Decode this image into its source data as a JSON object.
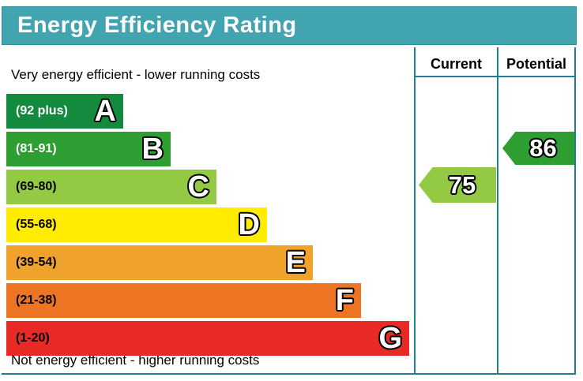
{
  "title": "Energy Efficiency Rating",
  "colors": {
    "header_bg": "#41a4b0",
    "table_line": "#20808f"
  },
  "columns": {
    "current_label": "Current",
    "potential_label": "Potential"
  },
  "notes": {
    "top": "Very energy efficient - lower running costs",
    "bottom": "Not energy efficient - higher running costs"
  },
  "bands": [
    {
      "letter": "A",
      "range": "(92 plus)",
      "color": "#148a3e",
      "range_text_color": "#ffffff"
    },
    {
      "letter": "B",
      "range": "(81-91)",
      "color": "#2e9d32",
      "range_text_color": "#ffffff"
    },
    {
      "letter": "C",
      "range": "(69-80)",
      "color": "#94ca43",
      "range_text_color": "#000000"
    },
    {
      "letter": "D",
      "range": "(55-68)",
      "color": "#ffec00",
      "range_text_color": "#000000"
    },
    {
      "letter": "E",
      "range": "(39-54)",
      "color": "#efa32c",
      "range_text_color": "#000000"
    },
    {
      "letter": "F",
      "range": "(21-38)",
      "color": "#ec7423",
      "range_text_color": "#000000"
    },
    {
      "letter": "G",
      "range": "(1-20)",
      "color": "#e72a25",
      "range_text_color": "#000000"
    }
  ],
  "current": {
    "value": "75",
    "band": "C",
    "color": "#94ca43"
  },
  "potential": {
    "value": "86",
    "band": "B",
    "color": "#2e9d32"
  },
  "chart_data": {
    "type": "bar",
    "title": "Energy Efficiency Rating",
    "categories": [
      "A",
      "B",
      "C",
      "D",
      "E",
      "F",
      "G"
    ],
    "band_score_ranges": [
      "92 plus",
      "81-91",
      "69-80",
      "55-68",
      "39-54",
      "21-38",
      "1-20"
    ],
    "band_colors": [
      "#148a3e",
      "#2e9d32",
      "#94ca43",
      "#ffec00",
      "#efa32c",
      "#ec7423",
      "#e72a25"
    ],
    "bar_relative_lengths": [
      148,
      208,
      266,
      330,
      388,
      449,
      510
    ],
    "series": [
      {
        "name": "Current",
        "value": 75,
        "band": "C",
        "color": "#94ca43"
      },
      {
        "name": "Potential",
        "value": 86,
        "band": "B",
        "color": "#2e9d32"
      }
    ],
    "annotations": [
      "Very energy efficient - lower running costs",
      "Not energy efficient - higher running costs"
    ],
    "axis_range": [
      1,
      100
    ],
    "grid": false,
    "legend_position": "right-columns"
  }
}
